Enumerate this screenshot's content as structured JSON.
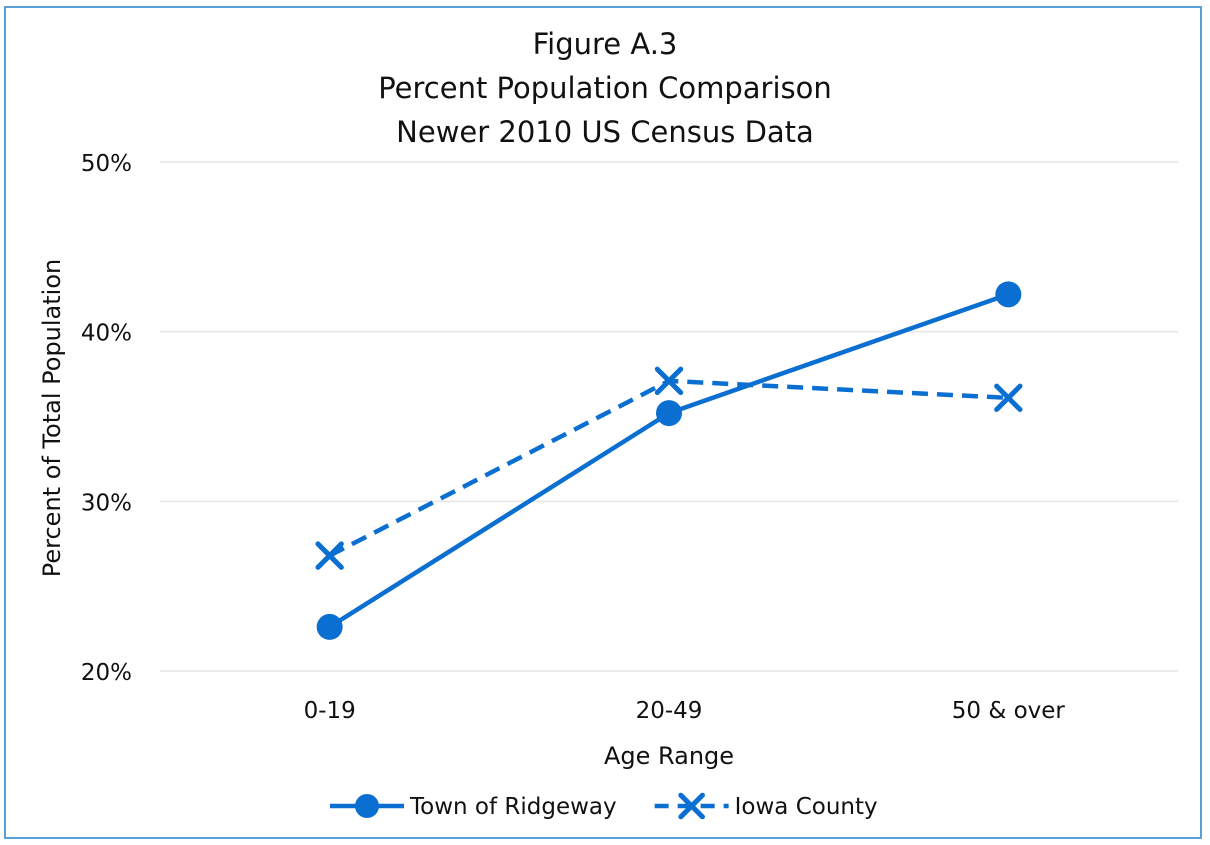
{
  "chart_data": {
    "type": "line",
    "title_lines": [
      "Figure A.3",
      "Percent Population Comparison",
      "Newer 2010 US Census Data"
    ],
    "xlabel": "Age Range",
    "ylabel": "Percent of Total Population",
    "categories": [
      "0-19",
      "20-49",
      "50 & over"
    ],
    "yticks": [
      "20%",
      "30%",
      "40%",
      "50%"
    ],
    "ylim": [
      0.2,
      0.5
    ],
    "grid": true,
    "legend_position": "bottom",
    "series": [
      {
        "name": "Town of Ridgeway",
        "values": [
          0.226,
          0.352,
          0.422
        ],
        "color": "#0a6fd1",
        "style": "solid",
        "marker": "circle"
      },
      {
        "name": "Iowa County",
        "values": [
          0.268,
          0.371,
          0.361
        ],
        "color": "#0a6fd1",
        "style": "dashed",
        "marker": "x"
      }
    ]
  }
}
